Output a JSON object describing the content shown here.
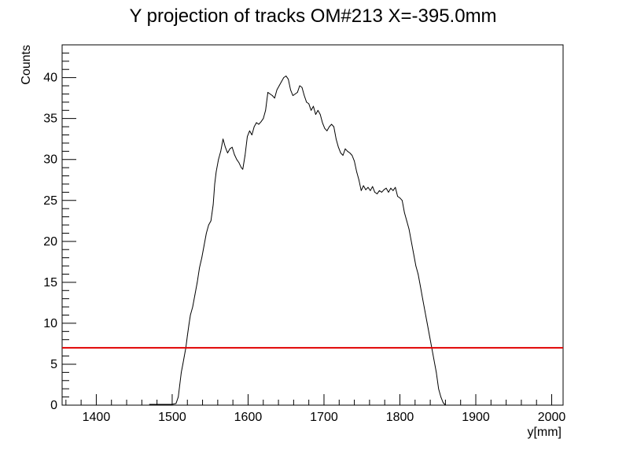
{
  "chart_data": {
    "type": "line",
    "title": "Y projection of tracks OM#213 X=-395.0mm",
    "xlabel": "y[mm]",
    "ylabel": "Counts",
    "xlim": [
      1355,
      2015
    ],
    "ylim": [
      0,
      44
    ],
    "x_ticks": [
      1400,
      1500,
      1600,
      1700,
      1800,
      1900,
      2000
    ],
    "y_ticks": [
      0,
      5,
      10,
      15,
      20,
      25,
      30,
      35,
      40
    ],
    "grid": false,
    "legend": "none",
    "series": [
      {
        "color": "#000000",
        "points": [
          [
            1470,
            0.1
          ],
          [
            1500,
            0.1
          ],
          [
            1505,
            0.2
          ],
          [
            1508,
            1.0
          ],
          [
            1510,
            2.5
          ],
          [
            1512,
            4.0
          ],
          [
            1514,
            5.0
          ],
          [
            1516,
            6.0
          ],
          [
            1518,
            7.0
          ],
          [
            1520,
            8.5
          ],
          [
            1522,
            9.8
          ],
          [
            1524,
            11.0
          ],
          [
            1527,
            12.0
          ],
          [
            1530,
            13.5
          ],
          [
            1533,
            15.0
          ],
          [
            1536,
            16.8
          ],
          [
            1539,
            18.0
          ],
          [
            1542,
            19.5
          ],
          [
            1545,
            21.0
          ],
          [
            1548,
            22.0
          ],
          [
            1551,
            22.5
          ],
          [
            1554,
            24.5
          ],
          [
            1556,
            27.0
          ],
          [
            1558,
            28.5
          ],
          [
            1561,
            30.0
          ],
          [
            1564,
            31.0
          ],
          [
            1567,
            32.5
          ],
          [
            1570,
            31.5
          ],
          [
            1573,
            30.8
          ],
          [
            1576,
            31.3
          ],
          [
            1579,
            31.5
          ],
          [
            1582,
            30.6
          ],
          [
            1585,
            30.0
          ],
          [
            1588,
            29.6
          ],
          [
            1591,
            29.0
          ],
          [
            1593,
            28.8
          ],
          [
            1596,
            30.5
          ],
          [
            1599,
            32.8
          ],
          [
            1602,
            33.5
          ],
          [
            1605,
            33.0
          ],
          [
            1608,
            34.0
          ],
          [
            1611,
            34.5
          ],
          [
            1614,
            34.3
          ],
          [
            1617,
            34.6
          ],
          [
            1620,
            35.0
          ],
          [
            1623,
            36.0
          ],
          [
            1626,
            38.2
          ],
          [
            1629,
            38.0
          ],
          [
            1632,
            37.8
          ],
          [
            1635,
            37.5
          ],
          [
            1638,
            38.5
          ],
          [
            1641,
            39.0
          ],
          [
            1644,
            39.5
          ],
          [
            1647,
            40.0
          ],
          [
            1650,
            40.2
          ],
          [
            1653,
            39.8
          ],
          [
            1656,
            38.5
          ],
          [
            1659,
            37.8
          ],
          [
            1662,
            38.0
          ],
          [
            1665,
            38.2
          ],
          [
            1668,
            39.0
          ],
          [
            1671,
            38.8
          ],
          [
            1674,
            37.8
          ],
          [
            1677,
            37.0
          ],
          [
            1680,
            36.8
          ],
          [
            1683,
            36.0
          ],
          [
            1686,
            36.5
          ],
          [
            1689,
            35.5
          ],
          [
            1692,
            36.0
          ],
          [
            1695,
            35.5
          ],
          [
            1698,
            34.5
          ],
          [
            1701,
            33.8
          ],
          [
            1704,
            33.5
          ],
          [
            1707,
            34.0
          ],
          [
            1710,
            34.3
          ],
          [
            1713,
            34.0
          ],
          [
            1716,
            32.5
          ],
          [
            1719,
            31.5
          ],
          [
            1722,
            30.8
          ],
          [
            1725,
            30.5
          ],
          [
            1728,
            31.3
          ],
          [
            1731,
            31.0
          ],
          [
            1734,
            30.8
          ],
          [
            1737,
            30.5
          ],
          [
            1740,
            29.8
          ],
          [
            1743,
            28.5
          ],
          [
            1746,
            27.5
          ],
          [
            1749,
            26.2
          ],
          [
            1752,
            26.8
          ],
          [
            1755,
            26.3
          ],
          [
            1758,
            26.6
          ],
          [
            1761,
            26.2
          ],
          [
            1764,
            26.7
          ],
          [
            1767,
            26.0
          ],
          [
            1770,
            25.8
          ],
          [
            1773,
            26.2
          ],
          [
            1776,
            26.0
          ],
          [
            1779,
            26.3
          ],
          [
            1782,
            26.5
          ],
          [
            1785,
            26.0
          ],
          [
            1788,
            26.5
          ],
          [
            1791,
            26.2
          ],
          [
            1794,
            26.6
          ],
          [
            1797,
            25.5
          ],
          [
            1800,
            25.3
          ],
          [
            1803,
            25.0
          ],
          [
            1806,
            23.5
          ],
          [
            1809,
            22.5
          ],
          [
            1812,
            21.5
          ],
          [
            1815,
            20.0
          ],
          [
            1818,
            18.5
          ],
          [
            1821,
            17.0
          ],
          [
            1824,
            16.0
          ],
          [
            1827,
            14.5
          ],
          [
            1830,
            13.0
          ],
          [
            1833,
            11.5
          ],
          [
            1836,
            10.0
          ],
          [
            1839,
            8.5
          ],
          [
            1842,
            7.0
          ],
          [
            1845,
            5.5
          ],
          [
            1848,
            4.0
          ],
          [
            1851,
            2.0
          ],
          [
            1854,
            1.0
          ],
          [
            1857,
            0.3
          ],
          [
            1860,
            0.0
          ]
        ]
      }
    ],
    "threshold": {
      "value": 7.0,
      "color": "#e00000"
    }
  }
}
